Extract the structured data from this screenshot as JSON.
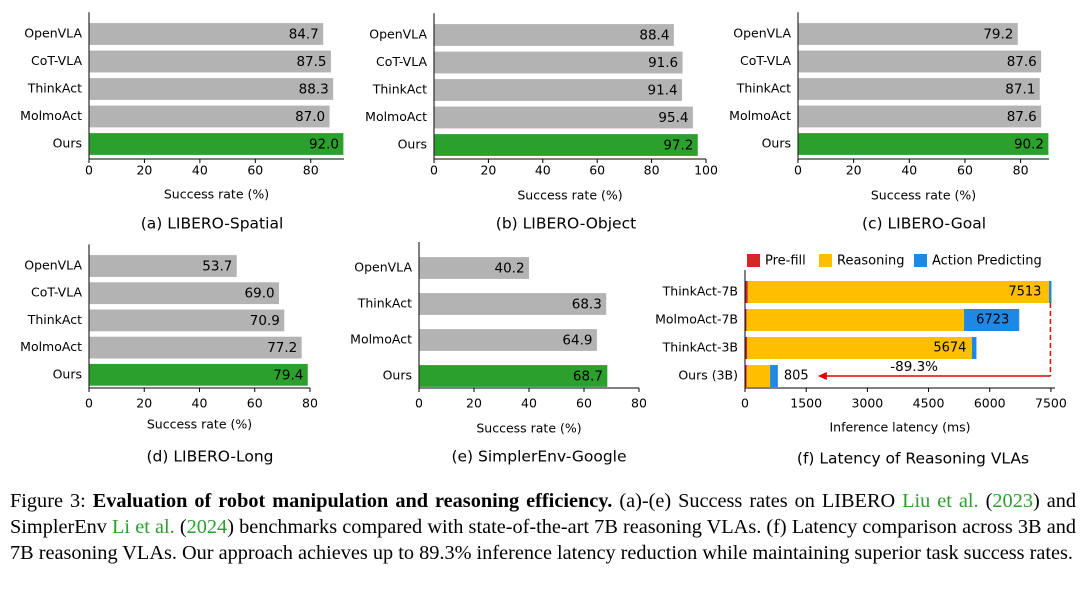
{
  "chart_data": [
    {
      "type": "bar",
      "orientation": "horizontal",
      "subtitle": "(a) LIBERO-Spatial",
      "categories": [
        "OpenVLA",
        "CoT-VLA",
        "ThinkAct",
        "MolmoAct",
        "Ours"
      ],
      "values": [
        84.7,
        87.5,
        88.3,
        87.0,
        92.0
      ],
      "value_labels": [
        "84.7",
        "87.5",
        "88.3",
        "87.0",
        "92.0"
      ],
      "xlabel": "Success rate (%)",
      "xlim": [
        0,
        92
      ],
      "xticks": [
        0,
        20,
        40,
        60,
        80
      ],
      "highlight": "Ours"
    },
    {
      "type": "bar",
      "orientation": "horizontal",
      "subtitle": "(b) LIBERO-Object",
      "categories": [
        "OpenVLA",
        "CoT-VLA",
        "ThinkAct",
        "MolmoAct",
        "Ours"
      ],
      "values": [
        88.4,
        91.6,
        91.4,
        95.4,
        97.2
      ],
      "value_labels": [
        "88.4",
        "91.6",
        "91.4",
        "95.4",
        "97.2"
      ],
      "xlabel": "Success rate (%)",
      "xlim": [
        0,
        100
      ],
      "xticks": [
        0,
        20,
        40,
        60,
        80,
        100
      ],
      "highlight": "Ours"
    },
    {
      "type": "bar",
      "orientation": "horizontal",
      "subtitle": "(c) LIBERO-Goal",
      "categories": [
        "OpenVLA",
        "CoT-VLA",
        "ThinkAct",
        "MolmoAct",
        "Ours"
      ],
      "values": [
        79.2,
        87.6,
        87.1,
        87.6,
        90.2
      ],
      "value_labels": [
        "79.2",
        "87.6",
        "87.1",
        "87.6",
        "90.2"
      ],
      "xlabel": "Success rate (%)",
      "xlim": [
        0,
        90.2
      ],
      "xticks": [
        0,
        20,
        40,
        60,
        80
      ],
      "highlight": "Ours"
    },
    {
      "type": "bar",
      "orientation": "horizontal",
      "subtitle": "(d) LIBERO-Long",
      "categories": [
        "OpenVLA",
        "CoT-VLA",
        "ThinkAct",
        "MolmoAct",
        "Ours"
      ],
      "values": [
        53.7,
        69.0,
        70.9,
        77.2,
        79.4
      ],
      "value_labels": [
        "53.7",
        "69.0",
        "70.9",
        "77.2",
        "79.4"
      ],
      "xlabel": "Success rate (%)",
      "xlim": [
        0,
        80
      ],
      "xticks": [
        0,
        20,
        40,
        60,
        80
      ],
      "highlight": "Ours"
    },
    {
      "type": "bar",
      "orientation": "horizontal",
      "subtitle": "(e) SimplerEnv-Google",
      "categories": [
        "OpenVLA",
        "ThinkAct",
        "MolmoAct",
        "Ours"
      ],
      "values": [
        40.2,
        68.3,
        64.9,
        68.7
      ],
      "value_labels": [
        "40.2",
        "68.3",
        "64.9",
        "68.7"
      ],
      "xlabel": "Success rate (%)",
      "xlim": [
        0,
        80
      ],
      "xticks": [
        0,
        20,
        40,
        60,
        80
      ],
      "highlight": "Ours"
    },
    {
      "type": "bar",
      "orientation": "horizontal",
      "stacked": true,
      "subtitle": "(f) Latency of Reasoning VLAs",
      "categories": [
        "ThinkAct-7B",
        "MolmoAct-7B",
        "ThinkAct-3B",
        "Ours (3B)"
      ],
      "series": [
        {
          "name": "Pre-fill",
          "color": "#d62728",
          "values": [
            70,
            40,
            55,
            45
          ]
        },
        {
          "name": "Reasoning",
          "color": "#ffbf00",
          "values": [
            7383,
            5330,
            5509,
            570
          ]
        },
        {
          "name": "Action Predicting",
          "color": "#1e88e5",
          "values": [
            60,
            1353,
            110,
            190
          ]
        }
      ],
      "totals": [
        "7513",
        "6723",
        "5674",
        "805"
      ],
      "xlabel": "Inference latency (ms)",
      "xlim": [
        0,
        7600
      ],
      "xticks": [
        0,
        1500,
        3000,
        4500,
        6000,
        7500
      ],
      "annotation": "-89.3%"
    }
  ],
  "colors": {
    "baseline": "#b3b3b3",
    "ours": "#2ca02c"
  },
  "caption": {
    "label": "Figure 3:",
    "title": "Evaluation of robot manipulation and reasoning efficiency.",
    "body_1": " (a)-(e) Success rates on LIBERO ",
    "cite_1_name": "Liu et al.",
    "cite_1_year": "2023",
    "body_2": " and SimplerEnv ",
    "cite_2_name": "Li et al.",
    "cite_2_year": "2024",
    "body_3": " benchmarks compared with state-of-the-art 7B reasoning VLAs. (f) Latency comparison across 3B and 7B reasoning VLAs. Our approach achieves up to 89.3% inference latency reduction while maintaining superior task success rates."
  }
}
